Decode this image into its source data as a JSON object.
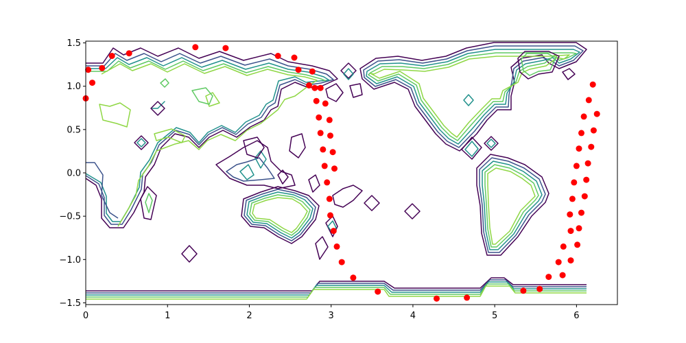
{
  "chart_data": {
    "type": "scatter",
    "title": "",
    "xlabel": "",
    "ylabel": "",
    "xlim": [
      0,
      6.5
    ],
    "ylim": [
      -1.52,
      1.52
    ],
    "grid": false,
    "x_ticks": [
      0,
      1,
      2,
      3,
      4,
      5,
      6
    ],
    "y_ticks": [
      -1.5,
      -1.0,
      -0.5,
      0.0,
      0.5,
      1.0,
      1.5
    ],
    "x_tick_labels": [
      "0",
      "1",
      "2",
      "3",
      "4",
      "5",
      "6"
    ],
    "y_tick_labels": [
      "−1.5",
      "−1.0",
      "−0.5",
      "0.0",
      "0.5",
      "1.0",
      "1.5"
    ],
    "background_layer": {
      "type": "contour",
      "description_colors": [
        "#440154",
        "#3b528b",
        "#21918c",
        "#5ec962",
        "#8fd744"
      ]
    },
    "series": [
      {
        "color": "#ff0000",
        "points": [
          [
            0.03,
            1.19
          ],
          [
            0.08,
            1.04
          ],
          [
            0.2,
            1.21
          ],
          [
            0.32,
            1.35
          ],
          [
            0.53,
            1.38
          ],
          [
            1.34,
            1.45
          ],
          [
            1.71,
            1.44
          ],
          [
            2.35,
            1.35
          ],
          [
            2.55,
            1.33
          ],
          [
            2.6,
            1.19
          ],
          [
            2.77,
            1.17
          ],
          [
            2.73,
            1.01
          ],
          [
            2.8,
            0.98
          ],
          [
            2.87,
            0.98
          ],
          [
            2.82,
            0.83
          ],
          [
            2.93,
            0.8
          ],
          [
            2.85,
            0.64
          ],
          [
            2.98,
            0.61
          ],
          [
            2.87,
            0.46
          ],
          [
            2.99,
            0.43
          ],
          [
            2.9,
            0.27
          ],
          [
            3.02,
            0.24
          ],
          [
            2.92,
            0.08
          ],
          [
            3.04,
            0.05
          ],
          [
            2.95,
            -0.11
          ],
          [
            2.98,
            -0.3
          ],
          [
            2.99,
            -0.49
          ],
          [
            3.03,
            -0.67
          ],
          [
            3.07,
            -0.85
          ],
          [
            3.13,
            -1.03
          ],
          [
            3.27,
            -1.21
          ],
          [
            3.57,
            -1.37
          ],
          [
            4.29,
            -1.45
          ],
          [
            4.66,
            -1.44
          ],
          [
            5.35,
            -1.36
          ],
          [
            5.55,
            -1.34
          ],
          [
            5.66,
            -1.2
          ],
          [
            5.78,
            -1.03
          ],
          [
            5.83,
            -1.18
          ],
          [
            5.84,
            -0.85
          ],
          [
            5.93,
            -1.01
          ],
          [
            5.92,
            -0.48
          ],
          [
            5.93,
            -0.67
          ],
          [
            5.95,
            -0.3
          ],
          [
            6.01,
            -0.83
          ],
          [
            6.03,
            -0.64
          ],
          [
            5.97,
            -0.11
          ],
          [
            6.06,
            -0.46
          ],
          [
            6.1,
            -0.27
          ],
          [
            6.0,
            0.08
          ],
          [
            6.12,
            -0.08
          ],
          [
            6.03,
            0.28
          ],
          [
            6.14,
            0.11
          ],
          [
            6.06,
            0.46
          ],
          [
            6.09,
            0.65
          ],
          [
            6.15,
            0.84
          ],
          [
            6.18,
            0.3
          ],
          [
            6.2,
            1.02
          ],
          [
            6.21,
            0.49
          ],
          [
            6.25,
            0.68
          ],
          [
            0.0,
            0.86
          ]
        ]
      }
    ]
  }
}
